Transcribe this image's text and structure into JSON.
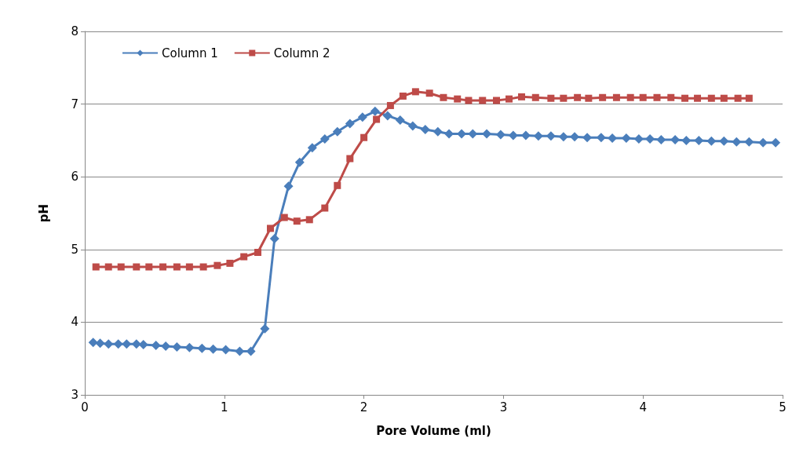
{
  "chart_data": {
    "type": "line",
    "xlabel": "Pore Volume (ml)",
    "ylabel": "pH",
    "xlim": [
      0,
      5
    ],
    "xticks": [
      0,
      1,
      2,
      3,
      4,
      5
    ],
    "ylim": [
      3,
      8
    ],
    "yticks": [
      3,
      4,
      5,
      6,
      7,
      8
    ],
    "grid": "y",
    "legend": "top left",
    "series": [
      {
        "name": "Column 1",
        "color": "#4a7ebb",
        "marker": "diamond",
        "x": [
          0.06,
          0.11,
          0.17,
          0.24,
          0.3,
          0.37,
          0.42,
          0.51,
          0.58,
          0.66,
          0.75,
          0.84,
          0.92,
          1.01,
          1.11,
          1.19,
          1.29,
          1.36,
          1.46,
          1.54,
          1.63,
          1.72,
          1.81,
          1.9,
          1.99,
          2.08,
          2.17,
          2.26,
          2.35,
          2.44,
          2.53,
          2.61,
          2.7,
          2.78,
          2.88,
          2.98,
          3.07,
          3.16,
          3.25,
          3.34,
          3.43,
          3.51,
          3.6,
          3.7,
          3.78,
          3.88,
          3.97,
          4.05,
          4.13,
          4.23,
          4.31,
          4.4,
          4.49,
          4.58,
          4.67,
          4.76,
          4.86,
          4.95
        ],
        "values": [
          3.72,
          3.71,
          3.7,
          3.7,
          3.7,
          3.7,
          3.69,
          3.68,
          3.67,
          3.66,
          3.65,
          3.64,
          3.63,
          3.62,
          3.6,
          3.6,
          3.91,
          5.15,
          5.87,
          6.2,
          6.4,
          6.52,
          6.62,
          6.73,
          6.82,
          6.9,
          6.84,
          6.78,
          6.7,
          6.65,
          6.62,
          6.59,
          6.59,
          6.59,
          6.59,
          6.58,
          6.57,
          6.57,
          6.56,
          6.56,
          6.55,
          6.55,
          6.54,
          6.54,
          6.53,
          6.53,
          6.52,
          6.52,
          6.51,
          6.51,
          6.5,
          6.5,
          6.49,
          6.49,
          6.48,
          6.48,
          6.47,
          6.47
        ]
      },
      {
        "name": "Column 2",
        "color": "#be4b48",
        "marker": "square",
        "x": [
          0.08,
          0.17,
          0.26,
          0.37,
          0.46,
          0.56,
          0.66,
          0.75,
          0.85,
          0.95,
          1.04,
          1.14,
          1.24,
          1.33,
          1.43,
          1.52,
          1.61,
          1.72,
          1.81,
          1.9,
          2.0,
          2.09,
          2.19,
          2.28,
          2.37,
          2.47,
          2.57,
          2.67,
          2.75,
          2.85,
          2.95,
          3.04,
          3.13,
          3.23,
          3.34,
          3.43,
          3.53,
          3.61,
          3.71,
          3.81,
          3.91,
          4.0,
          4.1,
          4.2,
          4.3,
          4.39,
          4.49,
          4.58,
          4.68,
          4.76
        ],
        "values": [
          4.76,
          4.76,
          4.76,
          4.76,
          4.76,
          4.76,
          4.76,
          4.76,
          4.76,
          4.78,
          4.81,
          4.9,
          4.96,
          5.29,
          5.44,
          5.39,
          5.41,
          5.57,
          5.88,
          6.25,
          6.54,
          6.79,
          6.98,
          7.11,
          7.17,
          7.15,
          7.09,
          7.07,
          7.05,
          7.05,
          7.05,
          7.07,
          7.1,
          7.09,
          7.08,
          7.08,
          7.09,
          7.08,
          7.09,
          7.09,
          7.09,
          7.09,
          7.09,
          7.09,
          7.08,
          7.08,
          7.08,
          7.08,
          7.08,
          7.08
        ]
      }
    ]
  }
}
